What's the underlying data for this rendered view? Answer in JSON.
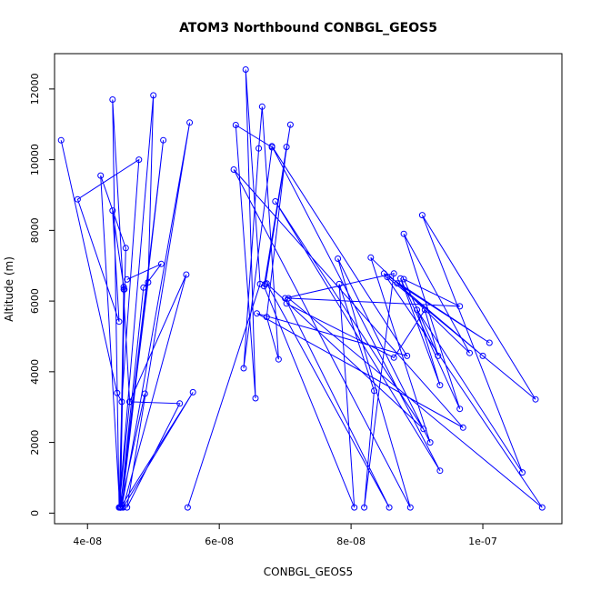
{
  "chart_data": {
    "type": "line",
    "title": "ATOM3 Northbound CONBGL_GEOS5",
    "xlabel": "CONBGL_GEOS5",
    "ylabel": "Altitude (m)",
    "xlim": [
      3.5e-08,
      1.12e-07
    ],
    "ylim": [
      -300,
      13000
    ],
    "x_ticks": [
      4e-08,
      6e-08,
      8e-08,
      1e-07
    ],
    "x_tick_labels": [
      "4e-08",
      "6e-08",
      "8e-08",
      "1e-07"
    ],
    "y_ticks": [
      0,
      2000,
      4000,
      6000,
      8000,
      10000,
      12000
    ],
    "y_tick_labels": [
      "0",
      "2000",
      "4000",
      "6000",
      "8000",
      "10000",
      "12000"
    ],
    "grid": false,
    "colors": {
      "series": "#0000ff",
      "axis": "#000000",
      "background": "#ffffff"
    },
    "series": [
      {
        "x": [
          3.6e-08,
          4.45e-08,
          4.52e-08,
          4.78e-08,
          3.85e-08,
          4.48e-08,
          4.38e-08,
          4.55e-08,
          4.56e-08,
          4.5e-08,
          4.55e-08,
          4.49e-08,
          4.2e-08,
          4.58e-08,
          4.48e-08,
          4.38e-08,
          4.64e-08,
          4.48e-08,
          5e-08,
          4.92e-08,
          4.5e-08,
          4.87e-08,
          4.5e-08,
          5.15e-08,
          4.52e-08,
          5.55e-08,
          4.6e-08,
          5.4e-08,
          4.64e-08,
          5.5e-08,
          4.54e-08,
          5.6e-08,
          4.5e-08,
          4.85e-08,
          5.12e-08,
          4.6e-08
        ],
        "y": [
          10550,
          3400,
          3150,
          10000,
          8880,
          5420,
          8560,
          6400,
          6330,
          160,
          6330,
          160,
          9550,
          7500,
          160,
          11700,
          3150,
          160,
          11820,
          6530,
          160,
          3380,
          160,
          10550,
          160,
          11050,
          160,
          3100,
          3150,
          6750,
          160,
          3420,
          160,
          6380,
          7050,
          6610
        ]
      },
      {
        "x": [
          5.52e-08,
          6.62e-08,
          6.4e-08,
          6.55e-08,
          6.25e-08,
          6.8e-08,
          6.37e-08,
          6.6e-08,
          6.65e-08,
          6.9e-08,
          6.72e-08,
          7.02e-08,
          6.7e-08,
          7.08e-08,
          6.68e-08,
          8.05e-08,
          7.82e-08,
          8.35e-08,
          8.2e-08,
          8.65e-08,
          7e-08,
          8.58e-08,
          6.72e-08,
          9.1e-08,
          6.85e-08,
          9.35e-08,
          6.8e-08,
          8.85e-08,
          6.57e-08,
          9.7e-08,
          6.22e-08,
          8.9e-08,
          7.8e-08,
          9.2e-08,
          8.3e-08,
          9.8e-08,
          8.8e-08,
          9.65e-08,
          8.75e-08,
          9.35e-08,
          9e-08,
          1.06e-07,
          9.08e-08,
          1.08e-07,
          8.55e-08,
          1e-07,
          8.7e-08,
          1.01e-07,
          8.5e-08,
          1.09e-07,
          7.05e-08,
          9.65e-08,
          8.8e-08,
          9.32e-08,
          9.12e-08,
          8.65e-08,
          7.02e-08
        ],
        "y": [
          160,
          6480,
          12550,
          3250,
          10980,
          10350,
          4100,
          10320,
          11500,
          4350,
          5550,
          10360,
          6480,
          10990,
          6420,
          160,
          6480,
          3460,
          160,
          6780,
          6080,
          160,
          6500,
          2380,
          8820,
          1200,
          10380,
          4450,
          5650,
          2420,
          9720,
          160,
          7200,
          2000,
          7230,
          4530,
          7900,
          2950,
          6640,
          3620,
          5750,
          1150,
          8430,
          3220,
          6680,
          4450,
          6500,
          4820,
          6780,
          160,
          6080,
          5850,
          6620,
          4450,
          5750,
          4400,
          5930
        ]
      }
    ]
  }
}
